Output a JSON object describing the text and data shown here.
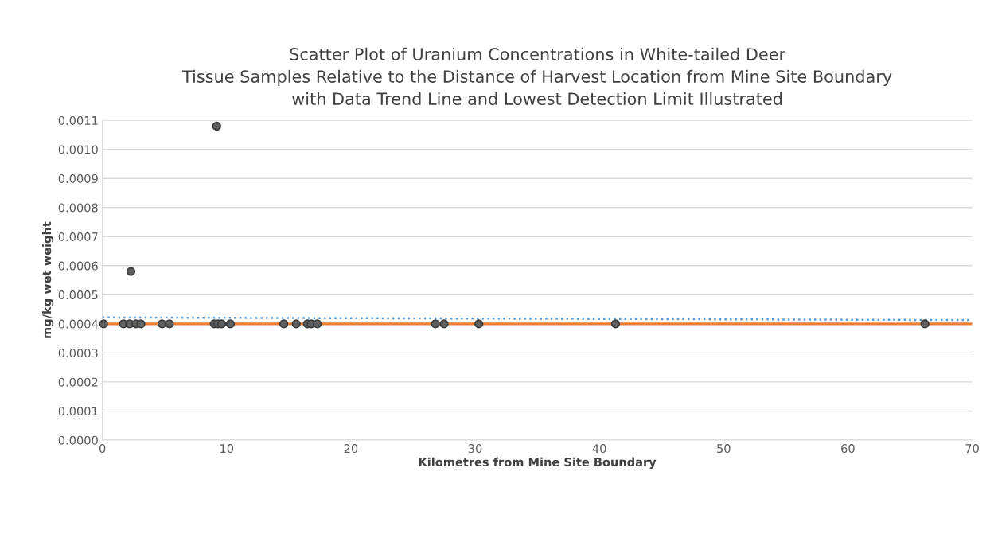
{
  "chart_data": {
    "type": "scatter",
    "title": "Scatter Plot of Uranium Concentrations in White-tailed Deer\nTissue Samples Relative to the Distance of Harvest Location from Mine Site Boundary\nwith Data Trend Line and Lowest Detection Limit Illustrated",
    "xlabel": "Kilometres from Mine Site Boundary",
    "ylabel": "mg/kg wet weight",
    "series": [
      {
        "color": "#5f5f5f",
        "x": [
          0.1,
          1.7,
          2.2,
          2.3,
          2.7,
          3.1,
          4.8,
          5.4,
          9.0,
          9.2,
          9.3,
          9.6,
          10.3,
          14.6,
          15.6,
          16.5,
          16.8,
          17.3,
          26.8,
          27.5,
          30.3,
          41.3,
          66.2
        ],
        "values": [
          0.0004,
          0.0004,
          0.0004,
          0.00058,
          0.0004,
          0.0004,
          0.0004,
          0.0004,
          0.0004,
          0.00108,
          0.0004,
          0.0004,
          0.0004,
          0.0004,
          0.0004,
          0.0004,
          0.0004,
          0.0004,
          0.0004,
          0.0004,
          0.0004,
          0.0004,
          0.0004
        ],
        "marker": "circle"
      },
      {
        "type": "line",
        "color": "#5b9bd5",
        "x": [
          0,
          70
        ],
        "values": [
          0.000422,
          0.000413
        ],
        "line_style": "dotted",
        "marker": "none"
      }
    ],
    "ref_lines": [
      {
        "axis": "y",
        "value": 0.0004,
        "color": "#ed7d31",
        "line_style": "solid"
      }
    ],
    "xlim": [
      0,
      70
    ],
    "xticks": [
      0,
      10,
      20,
      30,
      40,
      50,
      60,
      70
    ],
    "ylim": [
      0,
      0.0011
    ],
    "yticks": [
      {
        "value": 0,
        "label": "0.0000"
      },
      {
        "value": 0.0001,
        "label": "0.0001"
      },
      {
        "value": 0.0002,
        "label": "0.0002"
      },
      {
        "value": 0.0003,
        "label": "0.0003"
      },
      {
        "value": 0.0004,
        "label": "0.0004"
      },
      {
        "value": 0.0005,
        "label": "0.0005"
      },
      {
        "value": 0.0006,
        "label": "0.0006"
      },
      {
        "value": 0.0007,
        "label": "0.0007"
      },
      {
        "value": 0.0008,
        "label": "0.0008"
      },
      {
        "value": 0.0009,
        "label": "0.0009"
      },
      {
        "value": 0.001,
        "label": "0.0010"
      },
      {
        "value": 0.0011,
        "label": "0.0011"
      }
    ],
    "grid": "y",
    "legend": false
  }
}
